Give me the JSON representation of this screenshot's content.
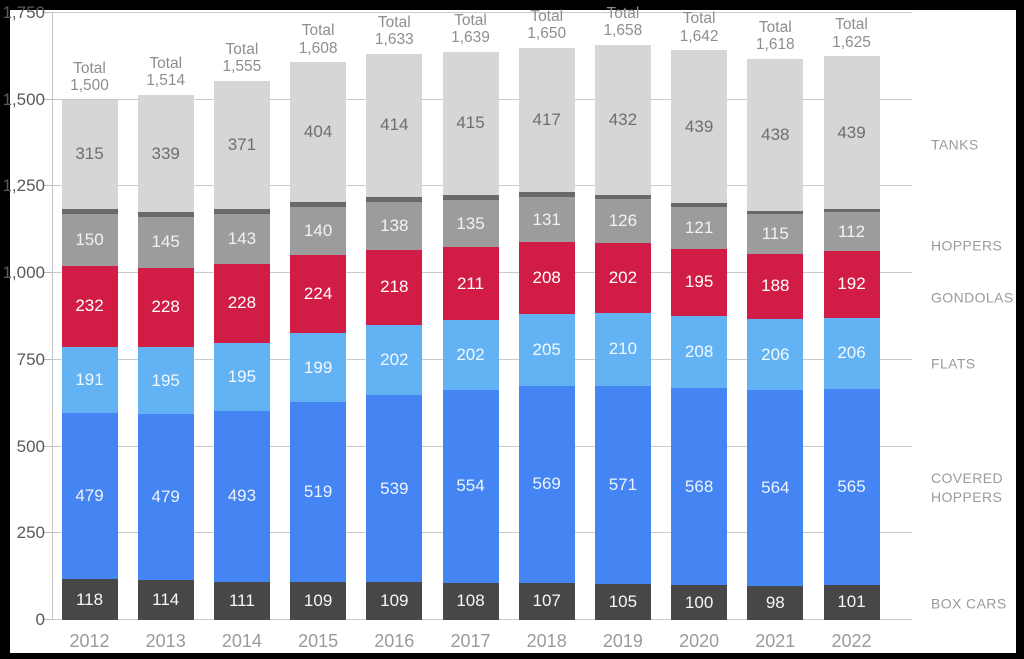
{
  "chart_data": {
    "type": "bar",
    "stacked": true,
    "title": "",
    "xlabel": "",
    "ylabel": "",
    "categories": [
      "2012",
      "2013",
      "2014",
      "2015",
      "2016",
      "2017",
      "2018",
      "2019",
      "2020",
      "2021",
      "2022"
    ],
    "series": [
      {
        "name": "BOX CARS",
        "color": "#474747",
        "label_color": "#f7f7f7",
        "values": [
          118,
          114,
          111,
          109,
          109,
          108,
          107,
          105,
          100,
          98,
          101
        ]
      },
      {
        "name": "COVERED HOPPERS",
        "color": "#4484f3",
        "label_color": "#eef4fd",
        "values": [
          479,
          479,
          493,
          519,
          539,
          554,
          569,
          571,
          568,
          564,
          565
        ]
      },
      {
        "name": "FLATS",
        "color": "#63b3f4",
        "label_color": "#f2f8fe",
        "values": [
          191,
          195,
          195,
          199,
          202,
          202,
          205,
          210,
          208,
          206,
          206
        ]
      },
      {
        "name": "GONDOLAS",
        "color": "#d11d46",
        "label_color": "#ffffff",
        "values": [
          232,
          228,
          228,
          224,
          218,
          211,
          208,
          202,
          195,
          188,
          192
        ]
      },
      {
        "name": "HOPPERS",
        "color": "#9c9c9c",
        "label_color": "#f2f2f2",
        "values": [
          150,
          145,
          143,
          140,
          138,
          135,
          131,
          126,
          121,
          115,
          112
        ]
      },
      {
        "name": "unlabeled-band",
        "color": "#696969",
        "label_color": "#ffffff",
        "labels_visible": false,
        "values": [
          15,
          14,
          14,
          13,
          13,
          14,
          13,
          12,
          11,
          9,
          10
        ]
      },
      {
        "name": "TANKS",
        "color": "#d6d6d6",
        "label_color": "#6e6e6e",
        "values": [
          315,
          339,
          371,
          404,
          414,
          415,
          417,
          432,
          439,
          438,
          439
        ]
      }
    ],
    "totals": {
      "prefix": "Total",
      "values": [
        "1,500",
        "1,514",
        "1,555",
        "1,608",
        "1,633",
        "1,639",
        "1,650",
        "1,658",
        "1,642",
        "1,618",
        "1,625"
      ]
    },
    "y_axis": {
      "ticks": [
        "0",
        "250",
        "500",
        "750",
        "1,000",
        "1,250",
        "1,500",
        "1,750"
      ],
      "min": 0,
      "max": 1750,
      "grid": true
    },
    "right_labels": [
      {
        "lines": [
          "TANKS"
        ],
        "y": 135
      },
      {
        "lines": [
          "HOPPERS"
        ],
        "y": 236
      },
      {
        "lines": [
          "GONDOLAS"
        ],
        "y": 288
      },
      {
        "lines": [
          "FLATS"
        ],
        "y": 354
      },
      {
        "lines": [
          "COVERED",
          "HOPPERS"
        ],
        "y": 478
      },
      {
        "lines": [
          "BOX CARS"
        ],
        "y": 594
      }
    ],
    "legend_position": "right",
    "ylim": [
      0,
      1750
    ]
  }
}
